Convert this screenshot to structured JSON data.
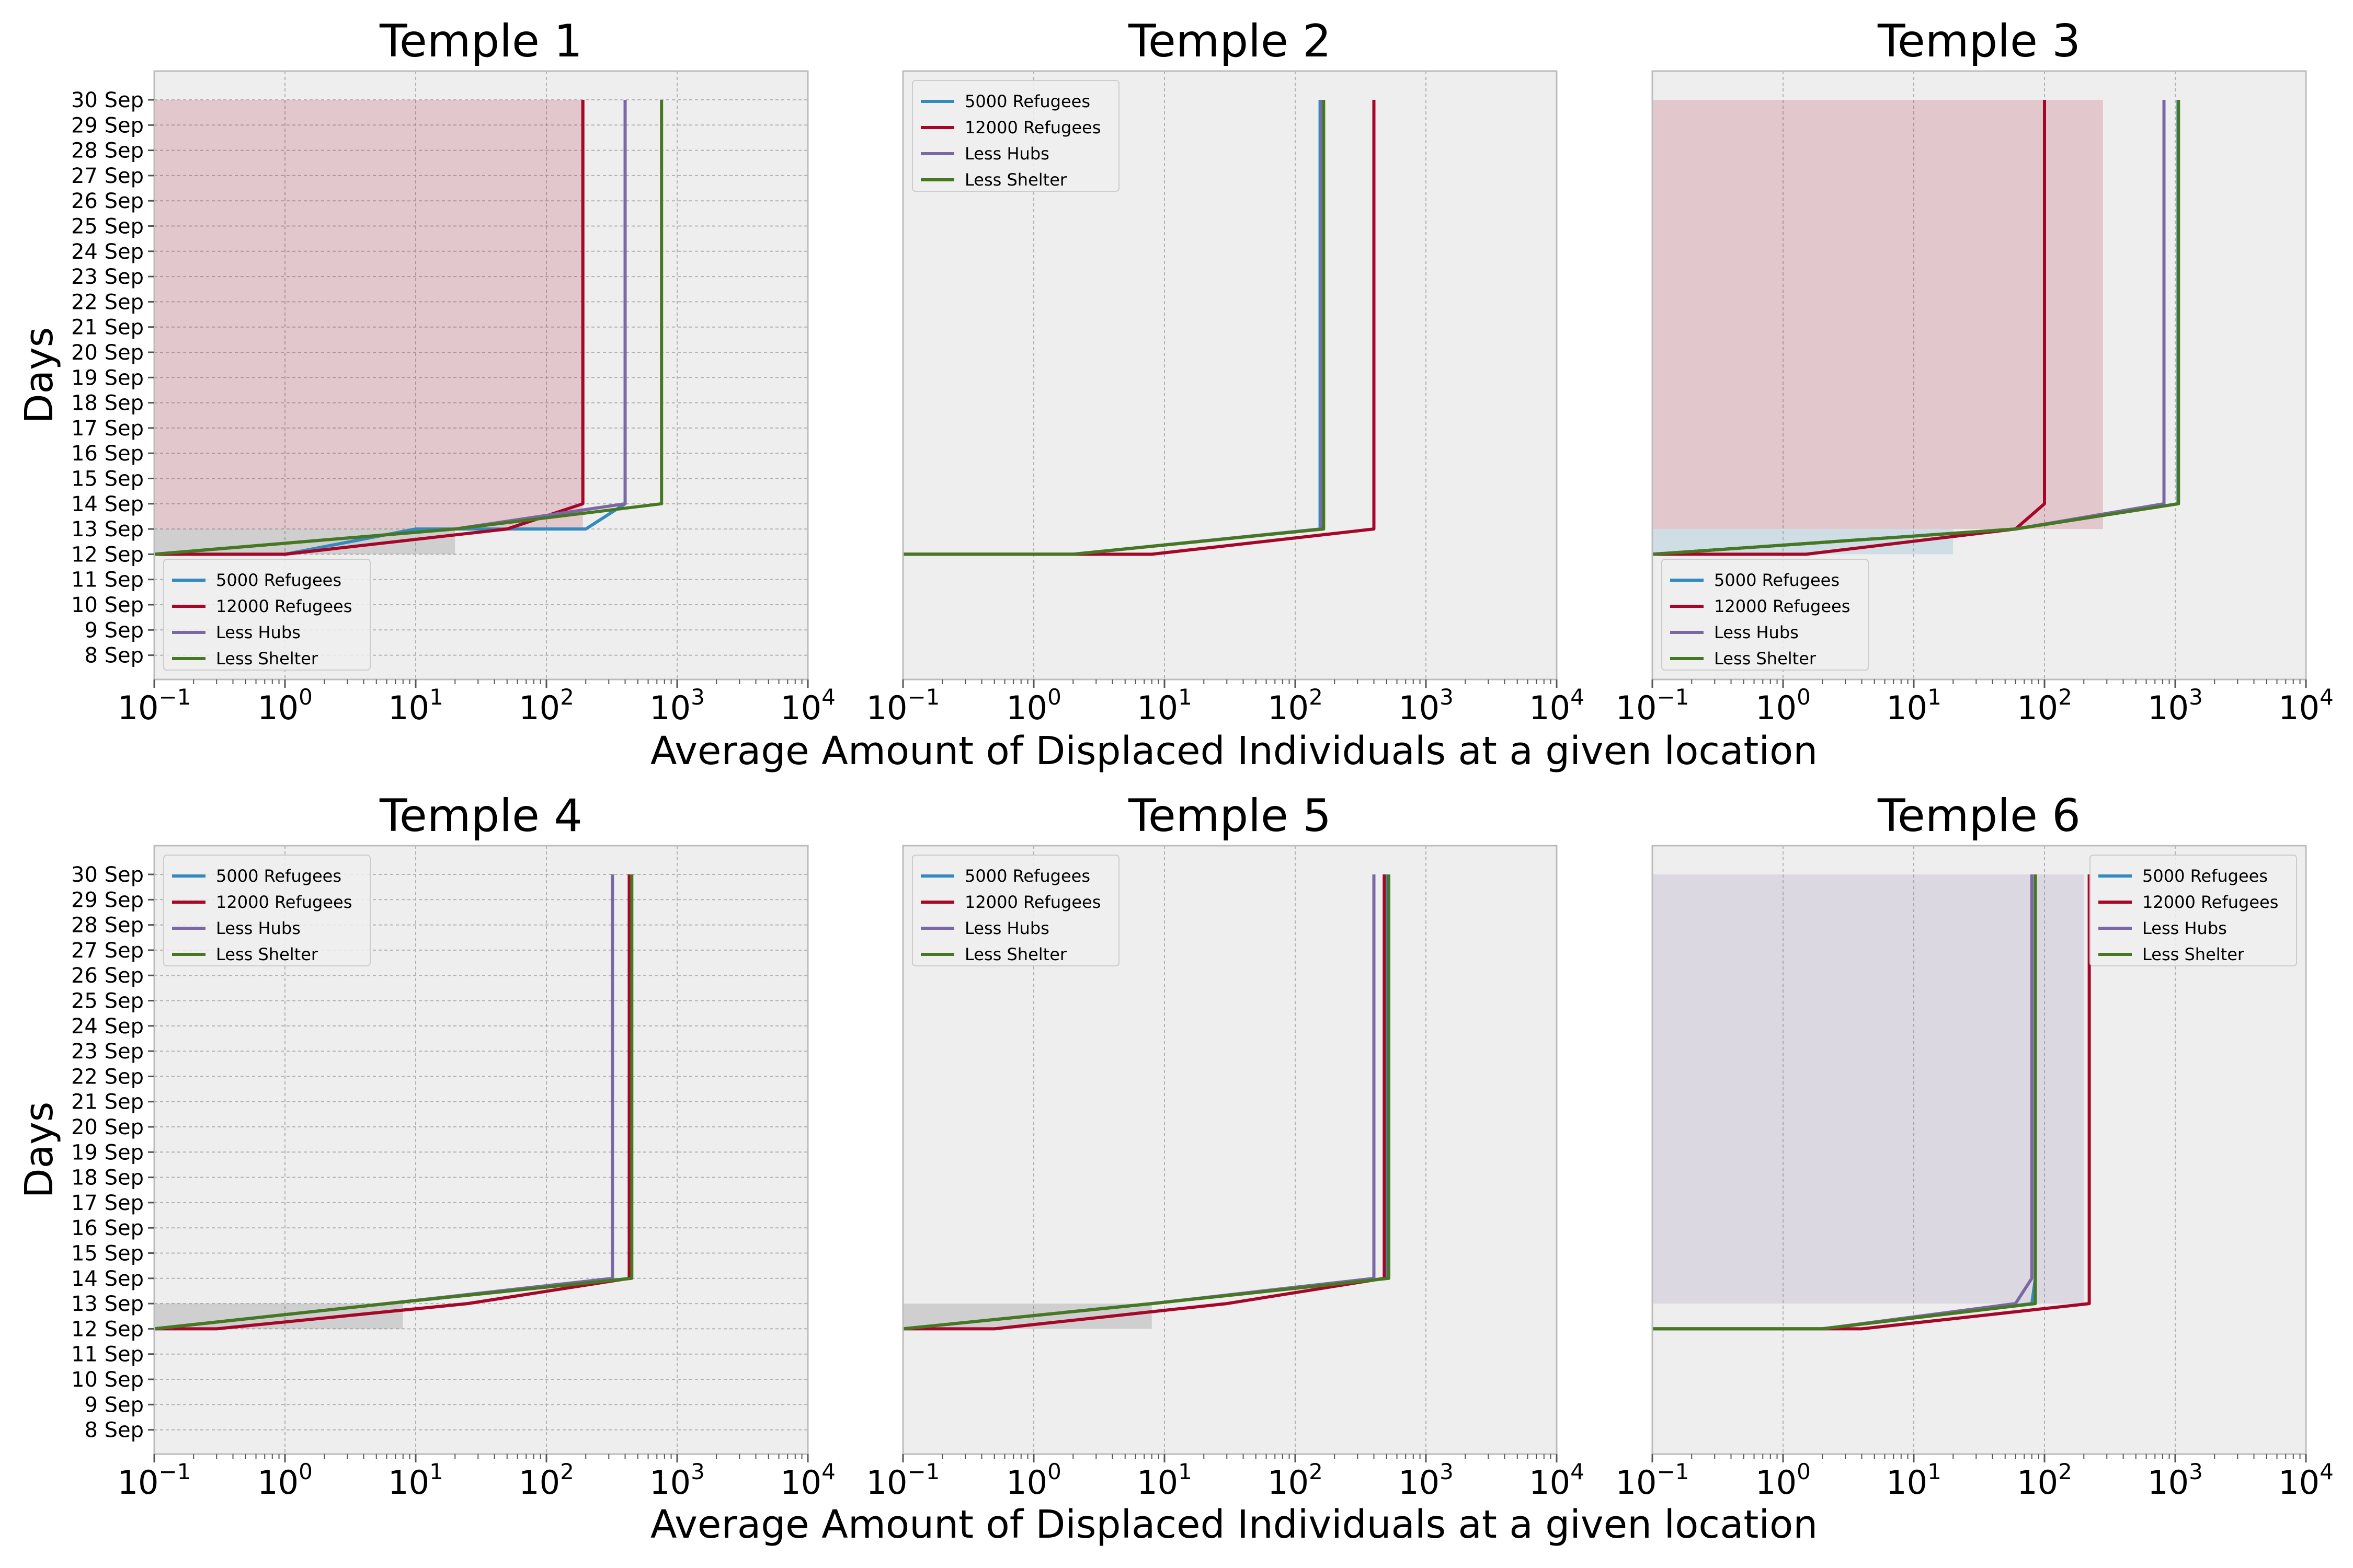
{
  "figure": {
    "xlabel": "Average Amount of Displaced Individuals at a given location",
    "ylabel": "Days"
  },
  "chart_data": [
    {
      "type": "line",
      "title": "Temple 1",
      "xscale": "log",
      "xlim": [
        0.1,
        10000
      ],
      "ylabel": "Days",
      "xlabel": "",
      "y_ticks_visible": true,
      "grid": true,
      "legend_position": "lower-left",
      "series": [
        {
          "name": "5000 Refugees",
          "color": "#348ABD",
          "x": [
            0.1,
            1,
            10,
            200,
            400,
            400
          ],
          "y": [
            "12 Sep",
            "12 Sep",
            "13 Sep",
            "13 Sep",
            "14 Sep",
            "30 Sep"
          ]
        },
        {
          "name": "12000 Refugees",
          "color": "#A60628",
          "x": [
            0.1,
            1,
            50,
            190,
            190
          ],
          "y": [
            "12 Sep",
            "12 Sep",
            "13 Sep",
            "14 Sep",
            "30 Sep"
          ]
        },
        {
          "name": "Less Hubs",
          "color": "#7A68A6",
          "x": [
            0.1,
            20,
            400,
            400
          ],
          "y": [
            "12 Sep",
            "13 Sep",
            "14 Sep",
            "30 Sep"
          ]
        },
        {
          "name": "Less Shelter",
          "color": "#467821",
          "x": [
            0.1,
            20,
            760,
            760
          ],
          "y": [
            "12 Sep",
            "13 Sep",
            "14 Sep",
            "30 Sep"
          ]
        }
      ],
      "bands": [
        {
          "color": "#A60628",
          "x_upper": 190,
          "y": [
            "13 Sep",
            "30 Sep"
          ]
        },
        {
          "color": "#333333",
          "x_upper": 20,
          "y": [
            "12 Sep",
            "13 Sep"
          ]
        }
      ]
    },
    {
      "type": "line",
      "title": "Temple 2",
      "xscale": "log",
      "xlim": [
        0.1,
        10000
      ],
      "ylabel": "",
      "xlabel": "",
      "y_ticks_visible": false,
      "grid": true,
      "legend_position": "upper-left",
      "series": [
        {
          "name": "5000 Refugees",
          "color": "#348ABD",
          "x": [
            0.1,
            2,
            155,
            155
          ],
          "y": [
            "12 Sep",
            "12 Sep",
            "13 Sep",
            "30 Sep"
          ]
        },
        {
          "name": "12000 Refugees",
          "color": "#A60628",
          "x": [
            0.1,
            8,
            400,
            400
          ],
          "y": [
            "12 Sep",
            "12 Sep",
            "13 Sep",
            "30 Sep"
          ]
        },
        {
          "name": "Less Hubs",
          "color": "#7A68A6",
          "x": [
            0.1,
            2,
            160,
            160
          ],
          "y": [
            "12 Sep",
            "12 Sep",
            "13 Sep",
            "30 Sep"
          ]
        },
        {
          "name": "Less Shelter",
          "color": "#467821",
          "x": [
            0.1,
            2,
            165,
            165
          ],
          "y": [
            "12 Sep",
            "12 Sep",
            "13 Sep",
            "30 Sep"
          ]
        }
      ],
      "bands": []
    },
    {
      "type": "line",
      "title": "Temple 3",
      "xscale": "log",
      "xlim": [
        0.1,
        10000
      ],
      "ylabel": "",
      "xlabel": "",
      "y_ticks_visible": false,
      "grid": true,
      "legend_position": "lower-left",
      "series": [
        {
          "name": "5000 Refugees",
          "color": "#348ABD",
          "x": [
            0.1,
            60,
            1050,
            1050
          ],
          "y": [
            "12 Sep",
            "13 Sep",
            "14 Sep",
            "30 Sep"
          ]
        },
        {
          "name": "12000 Refugees",
          "color": "#A60628",
          "x": [
            0.1,
            1.5,
            60,
            100,
            100
          ],
          "y": [
            "12 Sep",
            "12 Sep",
            "13 Sep",
            "14 Sep",
            "30 Sep"
          ]
        },
        {
          "name": "Less Hubs",
          "color": "#7A68A6",
          "x": [
            0.1,
            60,
            820,
            820
          ],
          "y": [
            "12 Sep",
            "13 Sep",
            "14 Sep",
            "30 Sep"
          ]
        },
        {
          "name": "Less Shelter",
          "color": "#467821",
          "x": [
            0.1,
            60,
            1060,
            1060
          ],
          "y": [
            "12 Sep",
            "13 Sep",
            "14 Sep",
            "30 Sep"
          ]
        }
      ],
      "bands": [
        {
          "color": "#A60628",
          "x_upper": 280,
          "y": [
            "13 Sep",
            "30 Sep"
          ]
        },
        {
          "color": "#348ABD",
          "x_upper": 20,
          "y": [
            "12 Sep",
            "13 Sep"
          ]
        }
      ]
    },
    {
      "type": "line",
      "title": "Temple 4",
      "xscale": "log",
      "xlim": [
        0.1,
        10000
      ],
      "ylabel": "Days",
      "xlabel": "Average Amount of Displaced Individuals at a given location",
      "y_ticks_visible": true,
      "grid": true,
      "legend_position": "upper-left",
      "series": [
        {
          "name": "5000 Refugees",
          "color": "#348ABD",
          "x": [
            0.1,
            6,
            440,
            440
          ],
          "y": [
            "12 Sep",
            "13 Sep",
            "14 Sep",
            "30 Sep"
          ]
        },
        {
          "name": "12000 Refugees",
          "color": "#A60628",
          "x": [
            0.1,
            0.3,
            25,
            430,
            430
          ],
          "y": [
            "12 Sep",
            "12 Sep",
            "13 Sep",
            "14 Sep",
            "30 Sep"
          ]
        },
        {
          "name": "Less Hubs",
          "color": "#7A68A6",
          "x": [
            0.1,
            6,
            320,
            320
          ],
          "y": [
            "12 Sep",
            "13 Sep",
            "14 Sep",
            "30 Sep"
          ]
        },
        {
          "name": "Less Shelter",
          "color": "#467821",
          "x": [
            0.1,
            6,
            450,
            450
          ],
          "y": [
            "12 Sep",
            "13 Sep",
            "14 Sep",
            "30 Sep"
          ]
        }
      ],
      "bands": [
        {
          "color": "#333333",
          "x_upper": 8,
          "y": [
            "12 Sep",
            "13 Sep"
          ]
        }
      ]
    },
    {
      "type": "line",
      "title": "Temple 5",
      "xscale": "log",
      "xlim": [
        0.1,
        10000
      ],
      "ylabel": "",
      "xlabel": "Average Amount of Displaced Individuals at a given location",
      "y_ticks_visible": false,
      "grid": true,
      "legend_position": "upper-left",
      "series": [
        {
          "name": "5000 Refugees",
          "color": "#348ABD",
          "x": [
            0.1,
            8,
            500,
            500
          ],
          "y": [
            "12 Sep",
            "13 Sep",
            "14 Sep",
            "30 Sep"
          ]
        },
        {
          "name": "12000 Refugees",
          "color": "#A60628",
          "x": [
            0.1,
            0.5,
            30,
            480,
            480
          ],
          "y": [
            "12 Sep",
            "12 Sep",
            "13 Sep",
            "14 Sep",
            "30 Sep"
          ]
        },
        {
          "name": "Less Hubs",
          "color": "#7A68A6",
          "x": [
            0.1,
            8,
            400,
            400
          ],
          "y": [
            "12 Sep",
            "13 Sep",
            "14 Sep",
            "30 Sep"
          ]
        },
        {
          "name": "Less Shelter",
          "color": "#467821",
          "x": [
            0.1,
            8,
            520,
            520
          ],
          "y": [
            "12 Sep",
            "13 Sep",
            "14 Sep",
            "30 Sep"
          ]
        }
      ],
      "bands": [
        {
          "color": "#333333",
          "x_upper": 8,
          "y": [
            "12 Sep",
            "13 Sep"
          ]
        }
      ]
    },
    {
      "type": "line",
      "title": "Temple 6",
      "xscale": "log",
      "xlim": [
        0.1,
        10000
      ],
      "ylabel": "",
      "xlabel": "Average Amount of Displaced Individuals at a given location",
      "y_ticks_visible": false,
      "grid": true,
      "legend_position": "upper-right",
      "series": [
        {
          "name": "5000 Refugees",
          "color": "#348ABD",
          "x": [
            0.1,
            2,
            80,
            85,
            85
          ],
          "y": [
            "12 Sep",
            "12 Sep",
            "13 Sep",
            "14 Sep",
            "30 Sep"
          ]
        },
        {
          "name": "12000 Refugees",
          "color": "#A60628",
          "x": [
            0.1,
            4,
            220,
            220
          ],
          "y": [
            "12 Sep",
            "12 Sep",
            "13 Sep",
            "30 Sep"
          ]
        },
        {
          "name": "Less Hubs",
          "color": "#7A68A6",
          "x": [
            0.1,
            2,
            60,
            80,
            80
          ],
          "y": [
            "12 Sep",
            "12 Sep",
            "13 Sep",
            "14 Sep",
            "30 Sep"
          ]
        },
        {
          "name": "Less Shelter",
          "color": "#467821",
          "x": [
            0.1,
            2,
            85,
            85
          ],
          "y": [
            "12 Sep",
            "12 Sep",
            "13 Sep",
            "30 Sep"
          ]
        }
      ],
      "bands": [
        {
          "color": "#7A68A6",
          "x_upper": 200,
          "y": [
            "13 Sep",
            "30 Sep"
          ]
        }
      ]
    }
  ],
  "y_categories": [
    "8 Sep",
    "9 Sep",
    "10 Sep",
    "11 Sep",
    "12 Sep",
    "13 Sep",
    "14 Sep",
    "15 Sep",
    "16 Sep",
    "17 Sep",
    "18 Sep",
    "19 Sep",
    "20 Sep",
    "21 Sep",
    "22 Sep",
    "23 Sep",
    "24 Sep",
    "25 Sep",
    "26 Sep",
    "27 Sep",
    "28 Sep",
    "29 Sep",
    "30 Sep"
  ],
  "x_ticks": [
    {
      "base": "10",
      "exp": "−1",
      "value": 0.1
    },
    {
      "base": "10",
      "exp": "0",
      "value": 1
    },
    {
      "base": "10",
      "exp": "1",
      "value": 10
    },
    {
      "base": "10",
      "exp": "2",
      "value": 100
    },
    {
      "base": "10",
      "exp": "3",
      "value": 1000
    },
    {
      "base": "10",
      "exp": "4",
      "value": 10000
    }
  ],
  "style": {
    "axes_bg": "#EEEEEE",
    "grid_color": "#B2B2B2",
    "spine_color": "#BCBCBC"
  }
}
